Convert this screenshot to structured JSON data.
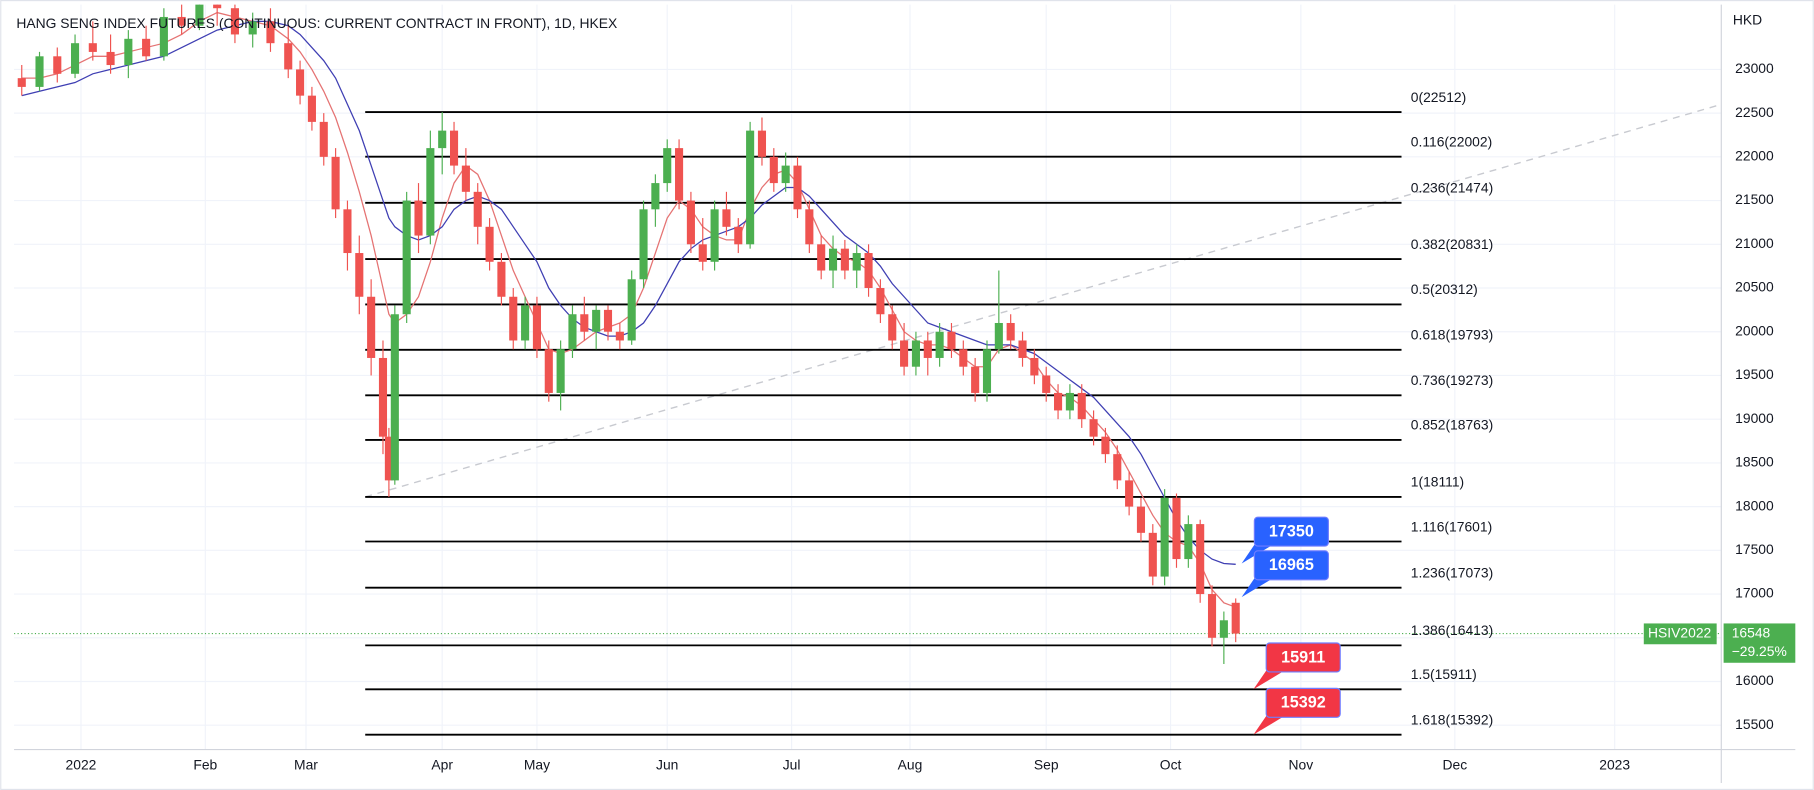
{
  "chart_data": {
    "type": "candlestick",
    "title": "HANG SENG INDEX FUTURES (CONTINUOUS: CURRENT CONTRACT IN FRONT), 1D, HKEX",
    "currency": "HKD",
    "xlim": [
      -11.3,
      277
    ],
    "ylim": [
      15222,
      23741
    ],
    "xticks": [
      {
        "value": 0,
        "label": "2022"
      },
      {
        "value": 21,
        "label": "Feb"
      },
      {
        "value": 38,
        "label": "Mar"
      },
      {
        "value": 61,
        "label": "Apr"
      },
      {
        "value": 77,
        "label": "May"
      },
      {
        "value": 99,
        "label": "Jun"
      },
      {
        "value": 120,
        "label": "Jul"
      },
      {
        "value": 140,
        "label": "Aug"
      },
      {
        "value": 163,
        "label": "Sep"
      },
      {
        "value": 184,
        "label": "Oct"
      },
      {
        "value": 206,
        "label": "Nov"
      },
      {
        "value": 232,
        "label": "Dec"
      },
      {
        "value": 259,
        "label": "2023"
      }
    ],
    "yticks": [
      15500,
      16000,
      16500,
      17000,
      17500,
      18000,
      18500,
      19000,
      19500,
      20000,
      20500,
      21000,
      21500,
      22000,
      22500,
      23000
    ],
    "grid": true,
    "up_color": "#4caf50",
    "down_color": "#ef5350",
    "x": [
      -10,
      -7,
      -4,
      -1,
      2,
      5,
      8,
      11,
      14,
      17,
      20,
      23,
      26,
      29,
      32,
      35,
      37,
      39,
      41,
      43,
      45,
      47,
      49,
      51,
      52,
      53,
      55,
      57,
      59,
      61,
      63,
      65,
      67,
      69,
      71,
      73,
      75,
      77,
      79,
      81,
      83,
      85,
      87,
      89,
      91,
      93,
      95,
      97,
      99,
      101,
      103,
      105,
      107,
      109,
      111,
      113,
      115,
      117,
      119,
      121,
      123,
      125,
      127,
      129,
      131,
      133,
      135,
      137,
      139,
      141,
      143,
      145,
      147,
      149,
      151,
      153,
      155,
      157,
      159,
      161,
      163,
      165,
      167,
      169,
      171,
      173,
      175,
      177,
      179,
      181,
      183,
      185,
      187,
      189,
      191,
      193,
      195
    ],
    "open": [
      22900,
      22800,
      23150,
      22950,
      23300,
      23200,
      23050,
      23350,
      23150,
      23600,
      23500,
      23800,
      23700,
      23400,
      23550,
      23300,
      23000,
      22700,
      22400,
      22000,
      21400,
      20900,
      20400,
      19700,
      18800,
      18300,
      20200,
      21500,
      21100,
      22100,
      22300,
      21900,
      21600,
      21200,
      20800,
      20400,
      19900,
      20300,
      19800,
      19300,
      19800,
      20200,
      20000,
      20250,
      20000,
      19900,
      20600,
      21400,
      21700,
      22100,
      21500,
      21000,
      20800,
      21400,
      21200,
      21000,
      22300,
      22000,
      21700,
      21900,
      21400,
      21000,
      20700,
      20950,
      20700,
      20900,
      20500,
      20200,
      19900,
      19600,
      19900,
      19700,
      20000,
      19800,
      19600,
      19300,
      19800,
      20100,
      19900,
      19700,
      19500,
      19300,
      19100,
      19300,
      19000,
      18800,
      18600,
      18300,
      18000,
      17700,
      17200,
      18100,
      17400,
      17800,
      17000,
      16500,
      16900
    ],
    "high": [
      23050,
      23200,
      23250,
      23400,
      23550,
      23400,
      23450,
      23500,
      23700,
      23800,
      23900,
      24000,
      23800,
      23650,
      23700,
      23500,
      23100,
      22800,
      22500,
      22100,
      21500,
      21100,
      20600,
      19900,
      18900,
      20300,
      21600,
      21700,
      22300,
      22512,
      22400,
      22100,
      21700,
      21300,
      20900,
      20500,
      20400,
      20400,
      19900,
      19900,
      20300,
      20400,
      20300,
      20300,
      20100,
      20700,
      21500,
      21800,
      22200,
      22200,
      21600,
      21300,
      21500,
      21600,
      21300,
      22400,
      22450,
      22100,
      22050,
      22000,
      21500,
      21100,
      21100,
      21050,
      21000,
      21000,
      20600,
      20300,
      20100,
      20000,
      20000,
      20100,
      20100,
      19900,
      19700,
      19900,
      20700,
      20200,
      20000,
      19800,
      19600,
      19400,
      19400,
      19400,
      19100,
      18900,
      18700,
      18400,
      18100,
      17800,
      18200,
      18150,
      17900,
      17850,
      17100,
      16800,
      16950
    ],
    "low": [
      22700,
      22750,
      22850,
      22900,
      23100,
      22950,
      22900,
      23100,
      23100,
      23400,
      23450,
      23500,
      23300,
      23250,
      23200,
      22900,
      22600,
      22300,
      21900,
      21300,
      20700,
      20200,
      19500,
      18600,
      18111,
      18250,
      20100,
      20900,
      21000,
      21800,
      21800,
      21500,
      21000,
      20700,
      20300,
      19800,
      19800,
      19700,
      19200,
      19100,
      19700,
      19900,
      19800,
      19900,
      19800,
      19850,
      20500,
      21200,
      21600,
      21400,
      20900,
      20700,
      20700,
      21100,
      20900,
      20950,
      21900,
      21600,
      21600,
      21300,
      20900,
      20600,
      20500,
      20600,
      20500,
      20400,
      20100,
      19800,
      19500,
      19500,
      19500,
      19600,
      19700,
      19500,
      19200,
      19200,
      19750,
      19800,
      19600,
      19400,
      19200,
      19000,
      19000,
      18900,
      18700,
      18500,
      18200,
      17900,
      17600,
      17100,
      17100,
      17300,
      17300,
      16900,
      16400,
      16200,
      16450
    ],
    "close": [
      22800,
      23150,
      22950,
      23300,
      23200,
      23050,
      23350,
      23150,
      23600,
      23500,
      23800,
      23700,
      23400,
      23550,
      23300,
      23000,
      22700,
      22400,
      22000,
      21400,
      20900,
      20400,
      19700,
      18800,
      18300,
      20200,
      21500,
      21100,
      22100,
      22300,
      21900,
      21600,
      21200,
      20800,
      20400,
      19900,
      20300,
      19800,
      19300,
      19800,
      20200,
      20000,
      20250,
      20000,
      19900,
      20600,
      21400,
      21700,
      22100,
      21500,
      21000,
      20800,
      21400,
      21200,
      21000,
      22300,
      22000,
      21700,
      21900,
      21400,
      21000,
      20700,
      20950,
      20700,
      20900,
      20500,
      20200,
      19900,
      19600,
      19900,
      19700,
      20000,
      19800,
      19600,
      19300,
      19800,
      20100,
      19900,
      19700,
      19500,
      19300,
      19100,
      19300,
      19000,
      18800,
      18600,
      18300,
      18000,
      17700,
      17200,
      18100,
      17400,
      17800,
      17000,
      16500,
      16700,
      16548
    ],
    "series": [
      {
        "color": "#e57373",
        "values": [
          22900,
          22900,
          22950,
          23050,
          23150,
          23150,
          23200,
          23250,
          23300,
          23400,
          23550,
          23650,
          23600,
          23550,
          23500,
          23350,
          23200,
          23000,
          22750,
          22450,
          22050,
          21600,
          21100,
          20500,
          20200,
          20100,
          20200,
          20400,
          20800,
          21300,
          21700,
          21900,
          21800,
          21500,
          21100,
          20700,
          20400,
          20100,
          19800,
          19750,
          19800,
          19900,
          20000,
          20050,
          20100,
          20200,
          20500,
          20900,
          21300,
          21500,
          21400,
          21200,
          21100,
          21050,
          21050,
          21400,
          21650,
          21800,
          21850,
          21700,
          21400,
          21100,
          20950,
          20850,
          20800,
          20700,
          20500,
          20250,
          20000,
          19900,
          19850,
          19850,
          19800,
          19700,
          19600,
          19600,
          19800,
          19850,
          19750,
          19650,
          19450,
          19300,
          19250,
          19150,
          19000,
          18850,
          18650,
          18400,
          18150,
          17900,
          17700,
          17600,
          17550,
          17350,
          17050,
          16900,
          16850
        ]
      },
      {
        "color": "#3f3fb3",
        "values": [
          22700,
          22750,
          22800,
          22850,
          22950,
          23000,
          23050,
          23100,
          23150,
          23250,
          23350,
          23450,
          23500,
          23550,
          23550,
          23500,
          23400,
          23250,
          23100,
          22900,
          22600,
          22300,
          21900,
          21500,
          21300,
          21200,
          21100,
          21050,
          21100,
          21200,
          21400,
          21500,
          21550,
          21500,
          21400,
          21200,
          21000,
          20800,
          20500,
          20300,
          20150,
          20050,
          20000,
          19950,
          19950,
          20000,
          20100,
          20300,
          20550,
          20800,
          20950,
          21050,
          21100,
          21150,
          21200,
          21300,
          21450,
          21550,
          21650,
          21650,
          21550,
          21400,
          21250,
          21100,
          21000,
          20900,
          20750,
          20550,
          20400,
          20250,
          20100,
          20050,
          20000,
          19950,
          19900,
          19850,
          19850,
          19850,
          19800,
          19750,
          19650,
          19550,
          19450,
          19350,
          19250,
          19100,
          18950,
          18800,
          18600,
          18350,
          18100,
          17850,
          17650,
          17500,
          17400,
          17350,
          17340
        ]
      }
    ],
    "fib_range": [
      48,
      223
    ],
    "fib_levels": [
      {
        "label": "0(22512)",
        "value": 22512
      },
      {
        "label": "0.116(22002)",
        "value": 22002
      },
      {
        "label": "0.236(21474)",
        "value": 21474
      },
      {
        "label": "0.382(20831)",
        "value": 20831
      },
      {
        "label": "0.5(20312)",
        "value": 20312
      },
      {
        "label": "0.618(19793)",
        "value": 19793
      },
      {
        "label": "0.736(19273)",
        "value": 19273
      },
      {
        "label": "0.852(18763)",
        "value": 18763
      },
      {
        "label": "1(18111)",
        "value": 18111
      },
      {
        "label": "1.116(17601)",
        "value": 17601
      },
      {
        "label": "1.236(17073)",
        "value": 17073
      },
      {
        "label": "1.386(16413)",
        "value": 16413
      },
      {
        "label": "1.5(15911)",
        "value": 15911
      },
      {
        "label": "1.618(15392)",
        "value": 15392
      }
    ],
    "trendline": {
      "x": [
        48,
        277
      ],
      "y": [
        18111,
        22600
      ]
    },
    "callouts": [
      {
        "value": 17350,
        "x": 196,
        "color": "#2962ff"
      },
      {
        "value": 16965,
        "x": 196,
        "color": "#2962ff"
      },
      {
        "value": 15911,
        "x": 198,
        "color": "#f23645"
      },
      {
        "value": 15392,
        "x": 198,
        "color": "#f23645"
      }
    ],
    "last": {
      "symbol": "HSIV2022",
      "value": 16548,
      "change": "−29.25%",
      "color": "#4caf50"
    }
  }
}
